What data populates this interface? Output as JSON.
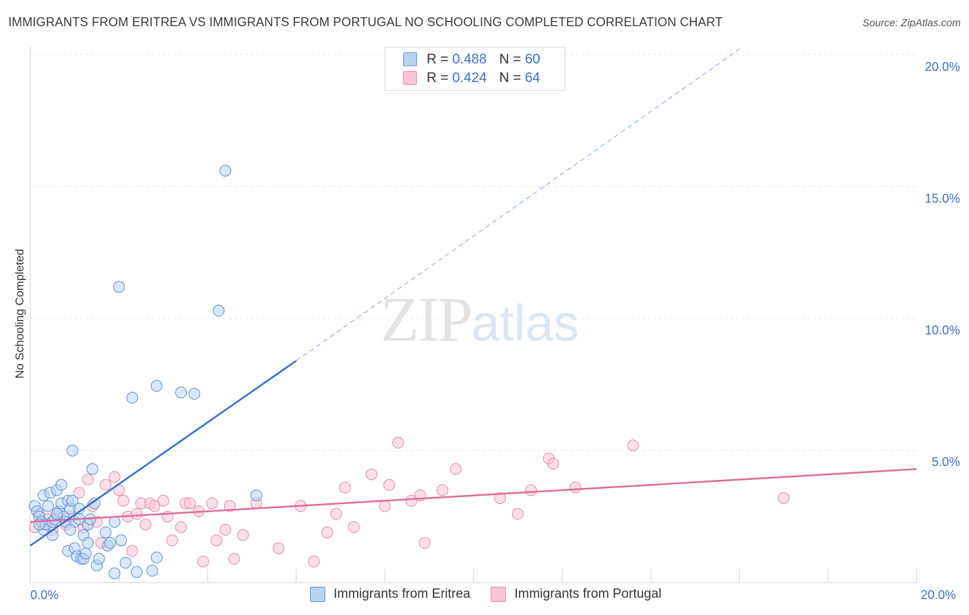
{
  "title": "IMMIGRANTS FROM ERITREA VS IMMIGRANTS FROM PORTUGAL NO SCHOOLING COMPLETED CORRELATION CHART",
  "source": "Source: ZipAtlas.com",
  "watermark": {
    "zip": "ZIP",
    "atlas": "atlas"
  },
  "legend_top": {
    "r_label": "R =",
    "n_label": "N =",
    "rows": [
      {
        "r": "0.488",
        "n": "60"
      },
      {
        "r": "0.424",
        "n": "64"
      }
    ]
  },
  "colors": {
    "eritrea_fill": "#b9d3f3",
    "eritrea_stroke": "#5b8fd6",
    "eritrea_line": "#2f6fcc",
    "portugal_fill": "#f8c5d6",
    "portugal_stroke": "#e889a9",
    "portugal_line": "#e06b95",
    "tick_text": "#3a72c8"
  },
  "chart_data": {
    "type": "scatter",
    "title": "IMMIGRANTS FROM ERITREA VS IMMIGRANTS FROM PORTUGAL NO SCHOOLING COMPLETED CORRELATION CHART",
    "xlabel": "",
    "ylabel": "No Schooling Completed",
    "xlim": [
      0,
      20
    ],
    "ylim": [
      0,
      20
    ],
    "x_tick_labels": [
      "0.0%",
      "20.0%"
    ],
    "y_ticks": [
      5,
      10,
      15,
      20
    ],
    "y_tick_labels": [
      "5.0%",
      "10.0%",
      "15.0%",
      "20.0%"
    ],
    "grid": true,
    "legend_position": "bottom",
    "series": [
      {
        "name": "Immigrants from Eritrea",
        "r": 0.488,
        "n": 60,
        "trend": {
          "x": [
            0,
            6
          ],
          "y": [
            1.4,
            8.4
          ],
          "extended_x": [
            6,
            16
          ],
          "extended_y": [
            8.4,
            20.2
          ]
        },
        "points": [
          [
            0.1,
            2.9
          ],
          [
            0.15,
            2.7
          ],
          [
            0.2,
            2.5
          ],
          [
            0.25,
            2.3
          ],
          [
            0.3,
            2.0
          ],
          [
            0.3,
            3.3
          ],
          [
            0.35,
            2.2
          ],
          [
            0.4,
            2.9
          ],
          [
            0.45,
            3.4
          ],
          [
            0.5,
            2.3
          ],
          [
            0.5,
            1.8
          ],
          [
            0.55,
            2.4
          ],
          [
            0.6,
            3.5
          ],
          [
            0.65,
            2.7
          ],
          [
            0.7,
            3.0
          ],
          [
            0.7,
            3.7
          ],
          [
            0.75,
            2.5
          ],
          [
            0.8,
            2.3
          ],
          [
            0.85,
            3.1
          ],
          [
            0.85,
            1.2
          ],
          [
            0.9,
            2.8
          ],
          [
            0.95,
            3.1
          ],
          [
            1.0,
            2.3
          ],
          [
            1.0,
            1.3
          ],
          [
            0.9,
            2.0
          ],
          [
            1.05,
            1.0
          ],
          [
            1.1,
            2.4
          ],
          [
            1.1,
            2.8
          ],
          [
            1.15,
            0.9
          ],
          [
            1.2,
            1.8
          ],
          [
            1.2,
            0.9
          ],
          [
            1.25,
            1.1
          ],
          [
            1.3,
            2.2
          ],
          [
            1.3,
            1.5
          ],
          [
            1.35,
            2.4
          ],
          [
            1.4,
            4.3
          ],
          [
            1.45,
            3.0
          ],
          [
            1.5,
            0.65
          ],
          [
            1.55,
            0.9
          ],
          [
            1.7,
            1.9
          ],
          [
            1.75,
            1.4
          ],
          [
            1.8,
            1.5
          ],
          [
            1.9,
            0.35
          ],
          [
            1.9,
            2.3
          ],
          [
            2.0,
            11.2
          ],
          [
            2.05,
            1.6
          ],
          [
            2.15,
            0.75
          ],
          [
            2.3,
            7.0
          ],
          [
            2.4,
            0.4
          ],
          [
            2.75,
            0.45
          ],
          [
            2.85,
            7.45
          ],
          [
            2.85,
            0.95
          ],
          [
            3.4,
            7.2
          ],
          [
            3.7,
            7.15
          ],
          [
            4.25,
            10.3
          ],
          [
            4.4,
            15.6
          ],
          [
            5.1,
            3.3
          ],
          [
            0.95,
            5.0
          ],
          [
            0.2,
            2.2
          ],
          [
            0.6,
            2.6
          ]
        ]
      },
      {
        "name": "Immigrants from Portugal",
        "r": 0.424,
        "n": 64,
        "trend": {
          "x": [
            0,
            20
          ],
          "y": [
            2.3,
            4.3
          ]
        },
        "points": [
          [
            0.1,
            2.1
          ],
          [
            0.2,
            2.6
          ],
          [
            0.3,
            2.2
          ],
          [
            0.4,
            2.4
          ],
          [
            0.5,
            2.0
          ],
          [
            0.6,
            2.5
          ],
          [
            0.8,
            2.2
          ],
          [
            0.9,
            2.5
          ],
          [
            1.1,
            3.4
          ],
          [
            1.2,
            2.1
          ],
          [
            1.3,
            3.9
          ],
          [
            1.4,
            2.9
          ],
          [
            1.5,
            2.3
          ],
          [
            1.6,
            1.5
          ],
          [
            1.7,
            3.7
          ],
          [
            1.9,
            4.0
          ],
          [
            2.0,
            3.5
          ],
          [
            2.1,
            3.1
          ],
          [
            2.2,
            2.5
          ],
          [
            2.3,
            1.2
          ],
          [
            2.4,
            2.6
          ],
          [
            2.5,
            3.0
          ],
          [
            2.6,
            2.2
          ],
          [
            2.7,
            3.0
          ],
          [
            2.8,
            2.9
          ],
          [
            3.0,
            3.1
          ],
          [
            3.1,
            2.5
          ],
          [
            3.2,
            1.6
          ],
          [
            3.4,
            2.1
          ],
          [
            3.5,
            3.0
          ],
          [
            3.6,
            3.0
          ],
          [
            3.8,
            2.7
          ],
          [
            3.9,
            0.8
          ],
          [
            4.1,
            3.0
          ],
          [
            4.2,
            1.6
          ],
          [
            4.4,
            2.0
          ],
          [
            4.5,
            2.9
          ],
          [
            4.6,
            0.9
          ],
          [
            4.8,
            1.8
          ],
          [
            5.1,
            3.0
          ],
          [
            5.6,
            1.3
          ],
          [
            6.1,
            2.9
          ],
          [
            6.4,
            0.8
          ],
          [
            6.7,
            1.9
          ],
          [
            6.9,
            2.6
          ],
          [
            7.1,
            3.6
          ],
          [
            7.3,
            2.1
          ],
          [
            7.7,
            4.1
          ],
          [
            8.0,
            2.9
          ],
          [
            8.1,
            3.7
          ],
          [
            8.3,
            5.3
          ],
          [
            8.6,
            3.1
          ],
          [
            8.8,
            3.3
          ],
          [
            8.9,
            1.5
          ],
          [
            9.3,
            3.5
          ],
          [
            9.6,
            4.3
          ],
          [
            10.6,
            3.2
          ],
          [
            11.0,
            2.6
          ],
          [
            11.3,
            3.5
          ],
          [
            11.7,
            4.7
          ],
          [
            11.8,
            4.5
          ],
          [
            12.3,
            3.6
          ],
          [
            13.6,
            5.2
          ],
          [
            17.0,
            3.2
          ]
        ]
      }
    ]
  },
  "legend_bottom": [
    "Immigrants from Eritrea",
    "Immigrants from Portugal"
  ]
}
